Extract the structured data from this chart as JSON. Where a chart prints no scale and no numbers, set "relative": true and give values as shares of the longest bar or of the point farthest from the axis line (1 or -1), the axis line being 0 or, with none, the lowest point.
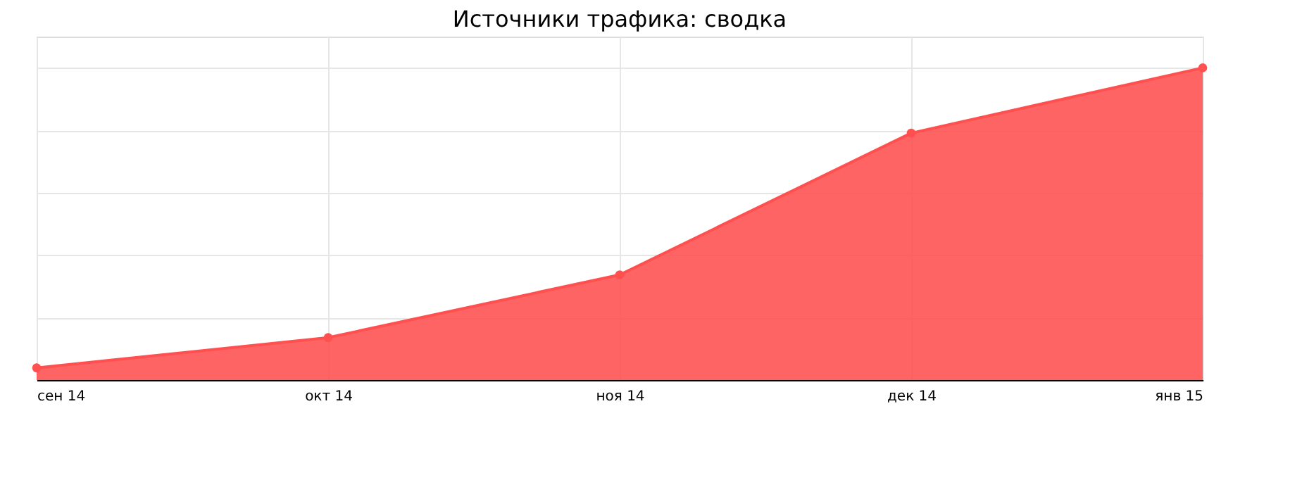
{
  "chart_data": {
    "type": "area",
    "title": "Источники трафика: сводка",
    "relative": true,
    "categories": [
      "сен 14",
      "окт 14",
      "ноя 14",
      "дек 14",
      "янв 15"
    ],
    "series": [
      {
        "color": "#ff4f4f",
        "values": [
          0.039,
          0.136,
          0.337,
          0.791,
          1.0
        ]
      }
    ],
    "grid": true,
    "marker": "circle"
  }
}
